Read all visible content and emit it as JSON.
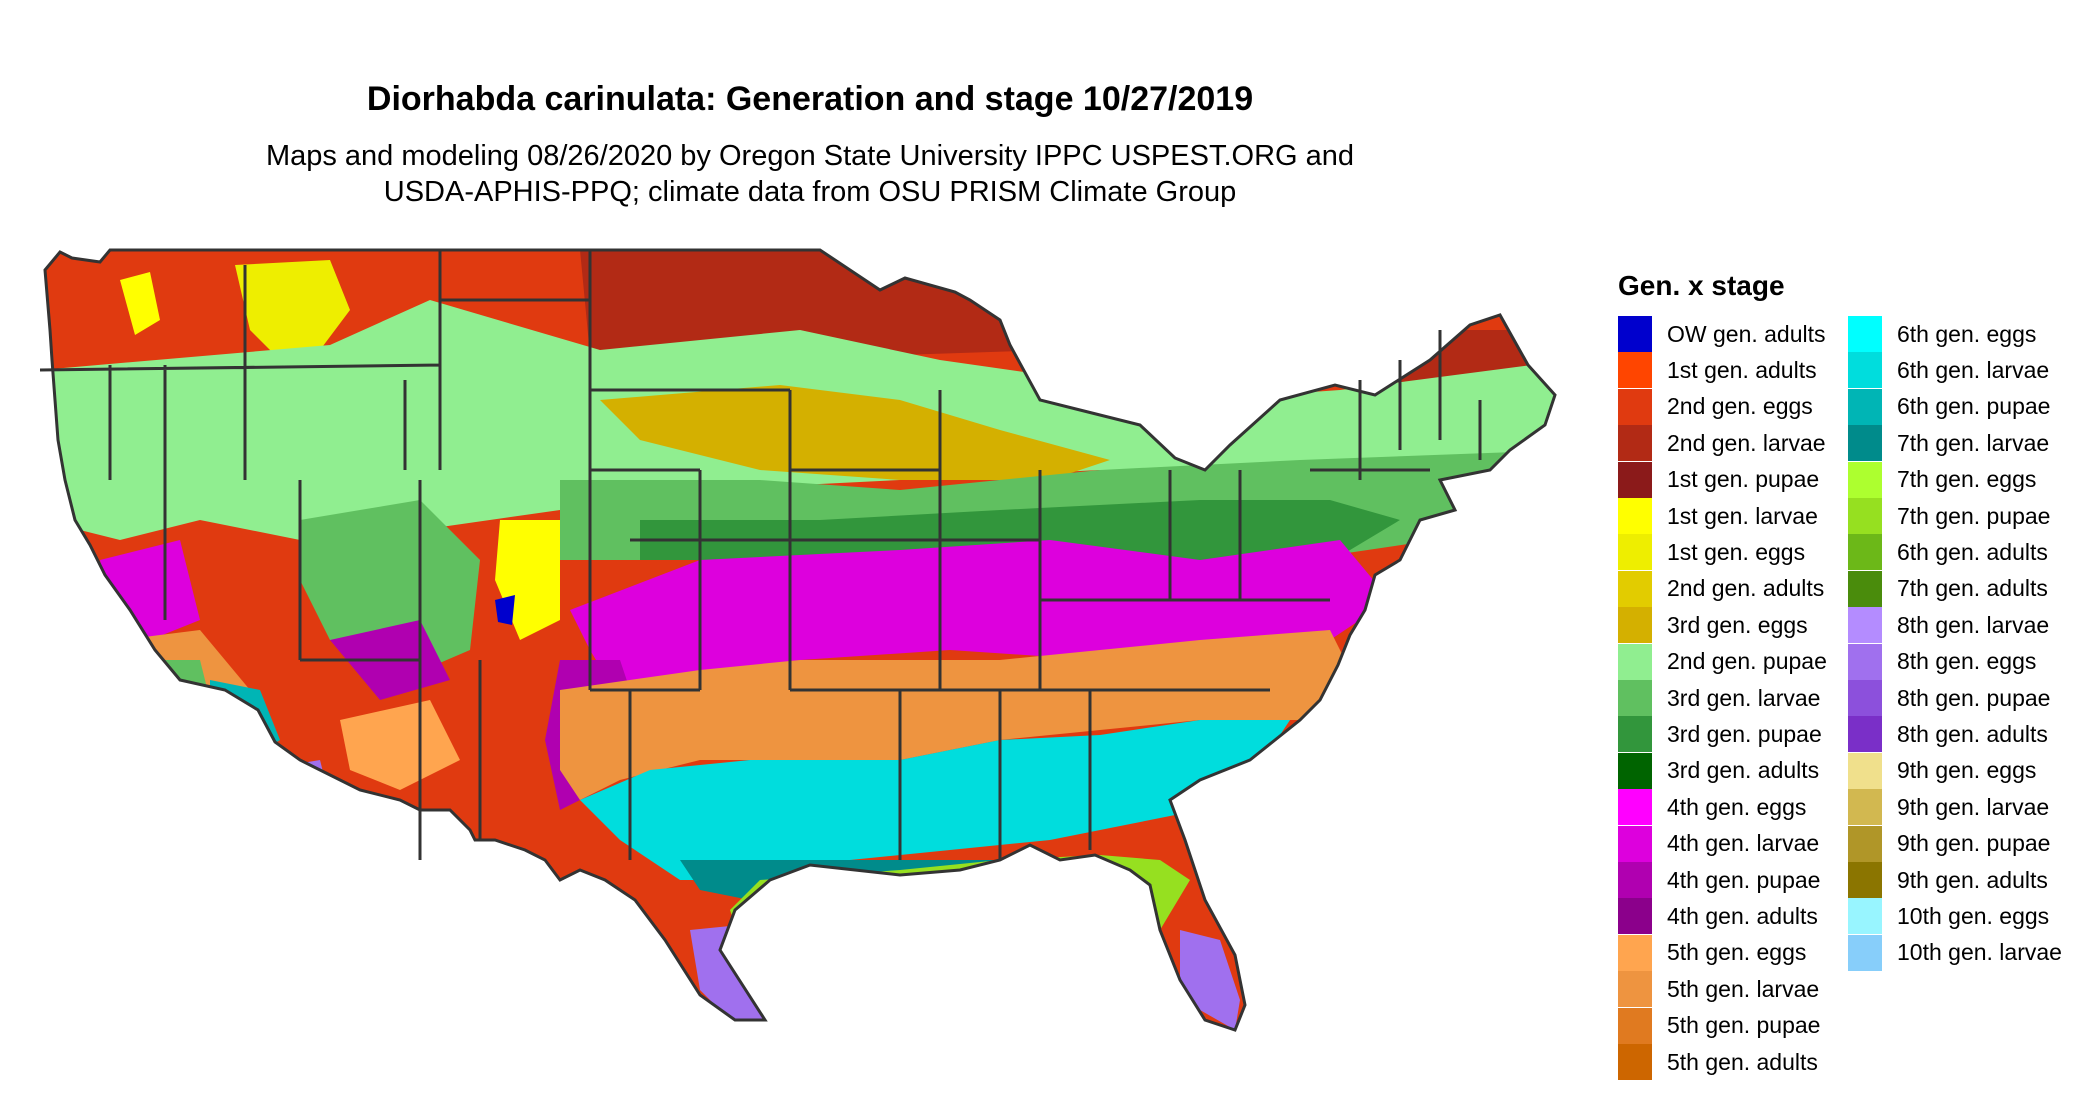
{
  "title": "Diorhabda carinulata: Generation and stage 10/27/2019",
  "subtitle_lines": [
    "Maps and modeling 08/26/2020 by Oregon State University IPPC USPEST.ORG and",
    "USDA-APHIS-PPQ; climate data from OSU PRISM Climate Group"
  ],
  "legend": {
    "title": "Gen. x stage",
    "items": [
      {
        "label": "OW gen. adults",
        "color": "#0000cd"
      },
      {
        "label": "1st gen. adults",
        "color": "#ff4500"
      },
      {
        "label": "2nd gen. eggs",
        "color": "#e03a10"
      },
      {
        "label": "2nd gen. larvae",
        "color": "#b22a15"
      },
      {
        "label": "1st gen. pupae",
        "color": "#8b1a1a"
      },
      {
        "label": "1st gen. larvae",
        "color": "#ffff00"
      },
      {
        "label": "1st gen. eggs",
        "color": "#eeee00"
      },
      {
        "label": "2nd gen. adults",
        "color": "#e2cc00"
      },
      {
        "label": "3rd gen. eggs",
        "color": "#d4b000"
      },
      {
        "label": "2nd gen. pupae",
        "color": "#90ee90"
      },
      {
        "label": "3rd gen. larvae",
        "color": "#60c060"
      },
      {
        "label": "3rd gen. pupae",
        "color": "#32963c"
      },
      {
        "label": "3rd gen. adults",
        "color": "#006400"
      },
      {
        "label": "4th gen. eggs",
        "color": "#ff00ff"
      },
      {
        "label": "4th gen. larvae",
        "color": "#dd00dd"
      },
      {
        "label": "4th gen. pupae",
        "color": "#b000b0"
      },
      {
        "label": "4th gen. adults",
        "color": "#8b008b"
      },
      {
        "label": "5th gen. eggs",
        "color": "#ffa54f"
      },
      {
        "label": "5th gen. larvae",
        "color": "#ee9440"
      },
      {
        "label": "5th gen. pupae",
        "color": "#e07a20"
      },
      {
        "label": "5th gen. adults",
        "color": "#cd6600"
      },
      {
        "label": "6th gen. eggs",
        "color": "#00ffff"
      },
      {
        "label": "6th gen. larvae",
        "color": "#00dddd"
      },
      {
        "label": "6th gen. pupae",
        "color": "#00b5b5"
      },
      {
        "label": "7th gen. larvae",
        "color": "#008b8b"
      },
      {
        "label": "7th gen. eggs",
        "color": "#adff2f"
      },
      {
        "label": "7th gen. pupae",
        "color": "#96e020"
      },
      {
        "label": "6th gen. adults",
        "color": "#6cb818"
      },
      {
        "label": "7th gen. adults",
        "color": "#4a8c0c"
      },
      {
        "label": "8th gen. larvae",
        "color": "#b48cff"
      },
      {
        "label": "8th gen. eggs",
        "color": "#a070ee"
      },
      {
        "label": "8th gen. pupae",
        "color": "#8c50dc"
      },
      {
        "label": "8th gen. adults",
        "color": "#7a2fc8"
      },
      {
        "label": "9th gen. eggs",
        "color": "#f0e08c"
      },
      {
        "label": "9th gen. larvae",
        "color": "#d2b850"
      },
      {
        "label": "9th gen. pupae",
        "color": "#b09628"
      },
      {
        "label": "9th gen. adults",
        "color": "#8b7500"
      },
      {
        "label": "10th gen. eggs",
        "color": "#98f5ff"
      },
      {
        "label": "10th gen. larvae",
        "color": "#87cefa"
      }
    ]
  }
}
